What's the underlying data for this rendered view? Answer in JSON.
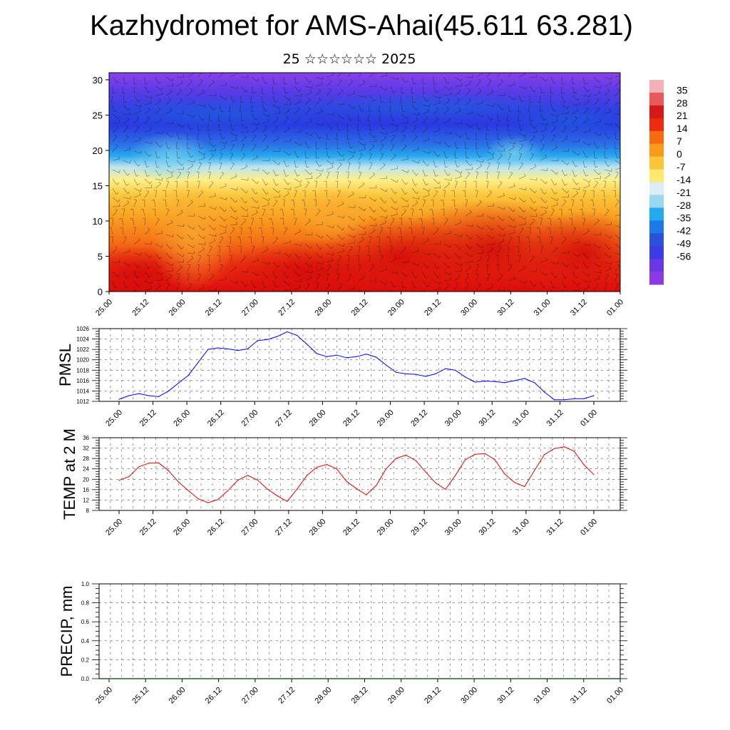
{
  "header": {
    "title": "Kazhydromet for AMS-Ahai(45.611 63.281)",
    "subtitle": "25 ☆☆☆☆☆☆ 2025"
  },
  "chart_data": [
    {
      "type": "heatmap",
      "title": "",
      "ylabel": "",
      "y_ticks": [
        0,
        5,
        10,
        15,
        20,
        25,
        30
      ],
      "ylim": [
        0,
        31
      ],
      "x_tick_labels": [
        "25.00",
        "25.12",
        "26.00",
        "26.12",
        "27.00",
        "27.12",
        "28.00",
        "28.12",
        "29.00",
        "29.12",
        "30.00",
        "30.12",
        "31.00",
        "31.12",
        "01.00"
      ],
      "colorbar_labels": [
        "35",
        "28",
        "21",
        "14",
        "7",
        "0",
        "-7",
        "-14",
        "-21",
        "-28",
        "-35",
        "-42",
        "-49",
        "-56"
      ],
      "colorbar_colors": [
        "#f4b0b8",
        "#e85a5a",
        "#d81818",
        "#ee2a10",
        "#f66a10",
        "#f99a1a",
        "#fbc43a",
        "#fde870",
        "#d8eef4",
        "#9ad8f2",
        "#22aaee",
        "#1f78e8",
        "#2a52dc",
        "#3a3ce8",
        "#6a36e6",
        "#8c3ae8"
      ],
      "overlay": "wind barbs"
    },
    {
      "type": "line",
      "ylabel": "PMSL",
      "ylim": [
        1012,
        1026
      ],
      "y_ticks": [
        1012,
        1014,
        1016,
        1018,
        1020,
        1022,
        1024,
        1026
      ],
      "x_tick_labels": [
        "25.00",
        "25.12",
        "26.00",
        "26.12",
        "27.00",
        "27.12",
        "28.00",
        "28.12",
        "29.00",
        "29.12",
        "30.00",
        "30.12",
        "31.00",
        "31.12",
        "01.00"
      ],
      "x_hours": [
        0,
        3,
        6,
        9,
        12,
        15,
        18,
        21,
        24,
        27,
        30,
        33,
        36,
        39,
        42,
        45,
        48,
        51,
        54,
        57,
        60,
        63,
        66,
        69,
        72,
        75,
        78,
        81,
        84,
        87,
        90,
        93,
        96,
        99,
        102,
        105,
        108,
        111,
        114,
        117,
        120,
        123,
        126,
        129,
        132,
        135,
        138,
        141,
        144
      ],
      "series": [
        {
          "color": "#0000ff",
          "values": [
            1012.4,
            1013.1,
            1013.5,
            1013.1,
            1012.9,
            1014.0,
            1015.5,
            1017.0,
            1019.5,
            1022.0,
            1022.3,
            1022.1,
            1021.8,
            1022.1,
            1023.7,
            1023.9,
            1024.5,
            1025.4,
            1024.7,
            1023.0,
            1021.2,
            1020.6,
            1020.9,
            1020.4,
            1020.6,
            1021.1,
            1020.5,
            1019.0,
            1017.6,
            1017.3,
            1017.2,
            1016.8,
            1017.3,
            1018.3,
            1018.0,
            1016.7,
            1015.7,
            1015.9,
            1015.8,
            1015.6,
            1016.0,
            1016.4,
            1015.6,
            1013.8,
            1012.3,
            1012.3,
            1012.5,
            1012.5,
            1013.1
          ]
        }
      ]
    },
    {
      "type": "line",
      "ylabel": "TEMP at 2 M",
      "ylim": [
        8,
        36
      ],
      "y_ticks": [
        8,
        12,
        16,
        20,
        24,
        28,
        32,
        36
      ],
      "x_tick_labels": [
        "25.00",
        "25.12",
        "26.00",
        "26.12",
        "27.00",
        "27.12",
        "28.00",
        "28.12",
        "29.00",
        "29.12",
        "30.00",
        "30.12",
        "31.00",
        "31.12",
        "01.00"
      ],
      "x_hours": [
        0,
        3,
        6,
        9,
        12,
        15,
        18,
        21,
        24,
        27,
        30,
        33,
        36,
        39,
        42,
        45,
        48,
        51,
        54,
        57,
        60,
        63,
        66,
        69,
        72,
        75,
        78,
        81,
        84,
        87,
        90,
        93,
        96,
        99,
        102,
        105,
        108,
        111,
        114,
        117,
        120,
        123,
        126,
        129,
        132,
        135,
        138,
        141,
        144
      ],
      "series": [
        {
          "color": "#ee0000",
          "values": [
            19.6,
            21.0,
            24.8,
            26.2,
            26.3,
            23.3,
            19.0,
            15.6,
            12.5,
            11.0,
            12.2,
            15.6,
            19.6,
            21.5,
            19.7,
            16.2,
            13.6,
            11.5,
            16.2,
            21.5,
            24.6,
            25.7,
            24.0,
            19.2,
            16.4,
            14.0,
            17.6,
            24.0,
            28.0,
            29.3,
            27.2,
            22.8,
            18.6,
            16.1,
            21.5,
            27.5,
            29.6,
            29.9,
            27.5,
            22.0,
            18.7,
            17.2,
            23.4,
            29.5,
            31.8,
            32.5,
            30.8,
            25.6,
            21.8
          ]
        }
      ]
    },
    {
      "type": "line",
      "ylabel": "PRECIP, mm",
      "ylim": [
        0.0,
        1.0
      ],
      "y_ticks": [
        0.0,
        0.2,
        0.4,
        0.6,
        0.8,
        1.0
      ],
      "y_tick_labels": [
        "0.0",
        "0.2",
        "0.4",
        "0.6",
        "0.8",
        "1.0"
      ],
      "x_tick_labels": [
        "25.00",
        "25.12",
        "26.00",
        "26.12",
        "27.00",
        "27.12",
        "28.00",
        "28.12",
        "29.00",
        "29.12",
        "30.00",
        "30.12",
        "31.00",
        "31.12",
        "01.00"
      ],
      "series": []
    }
  ]
}
